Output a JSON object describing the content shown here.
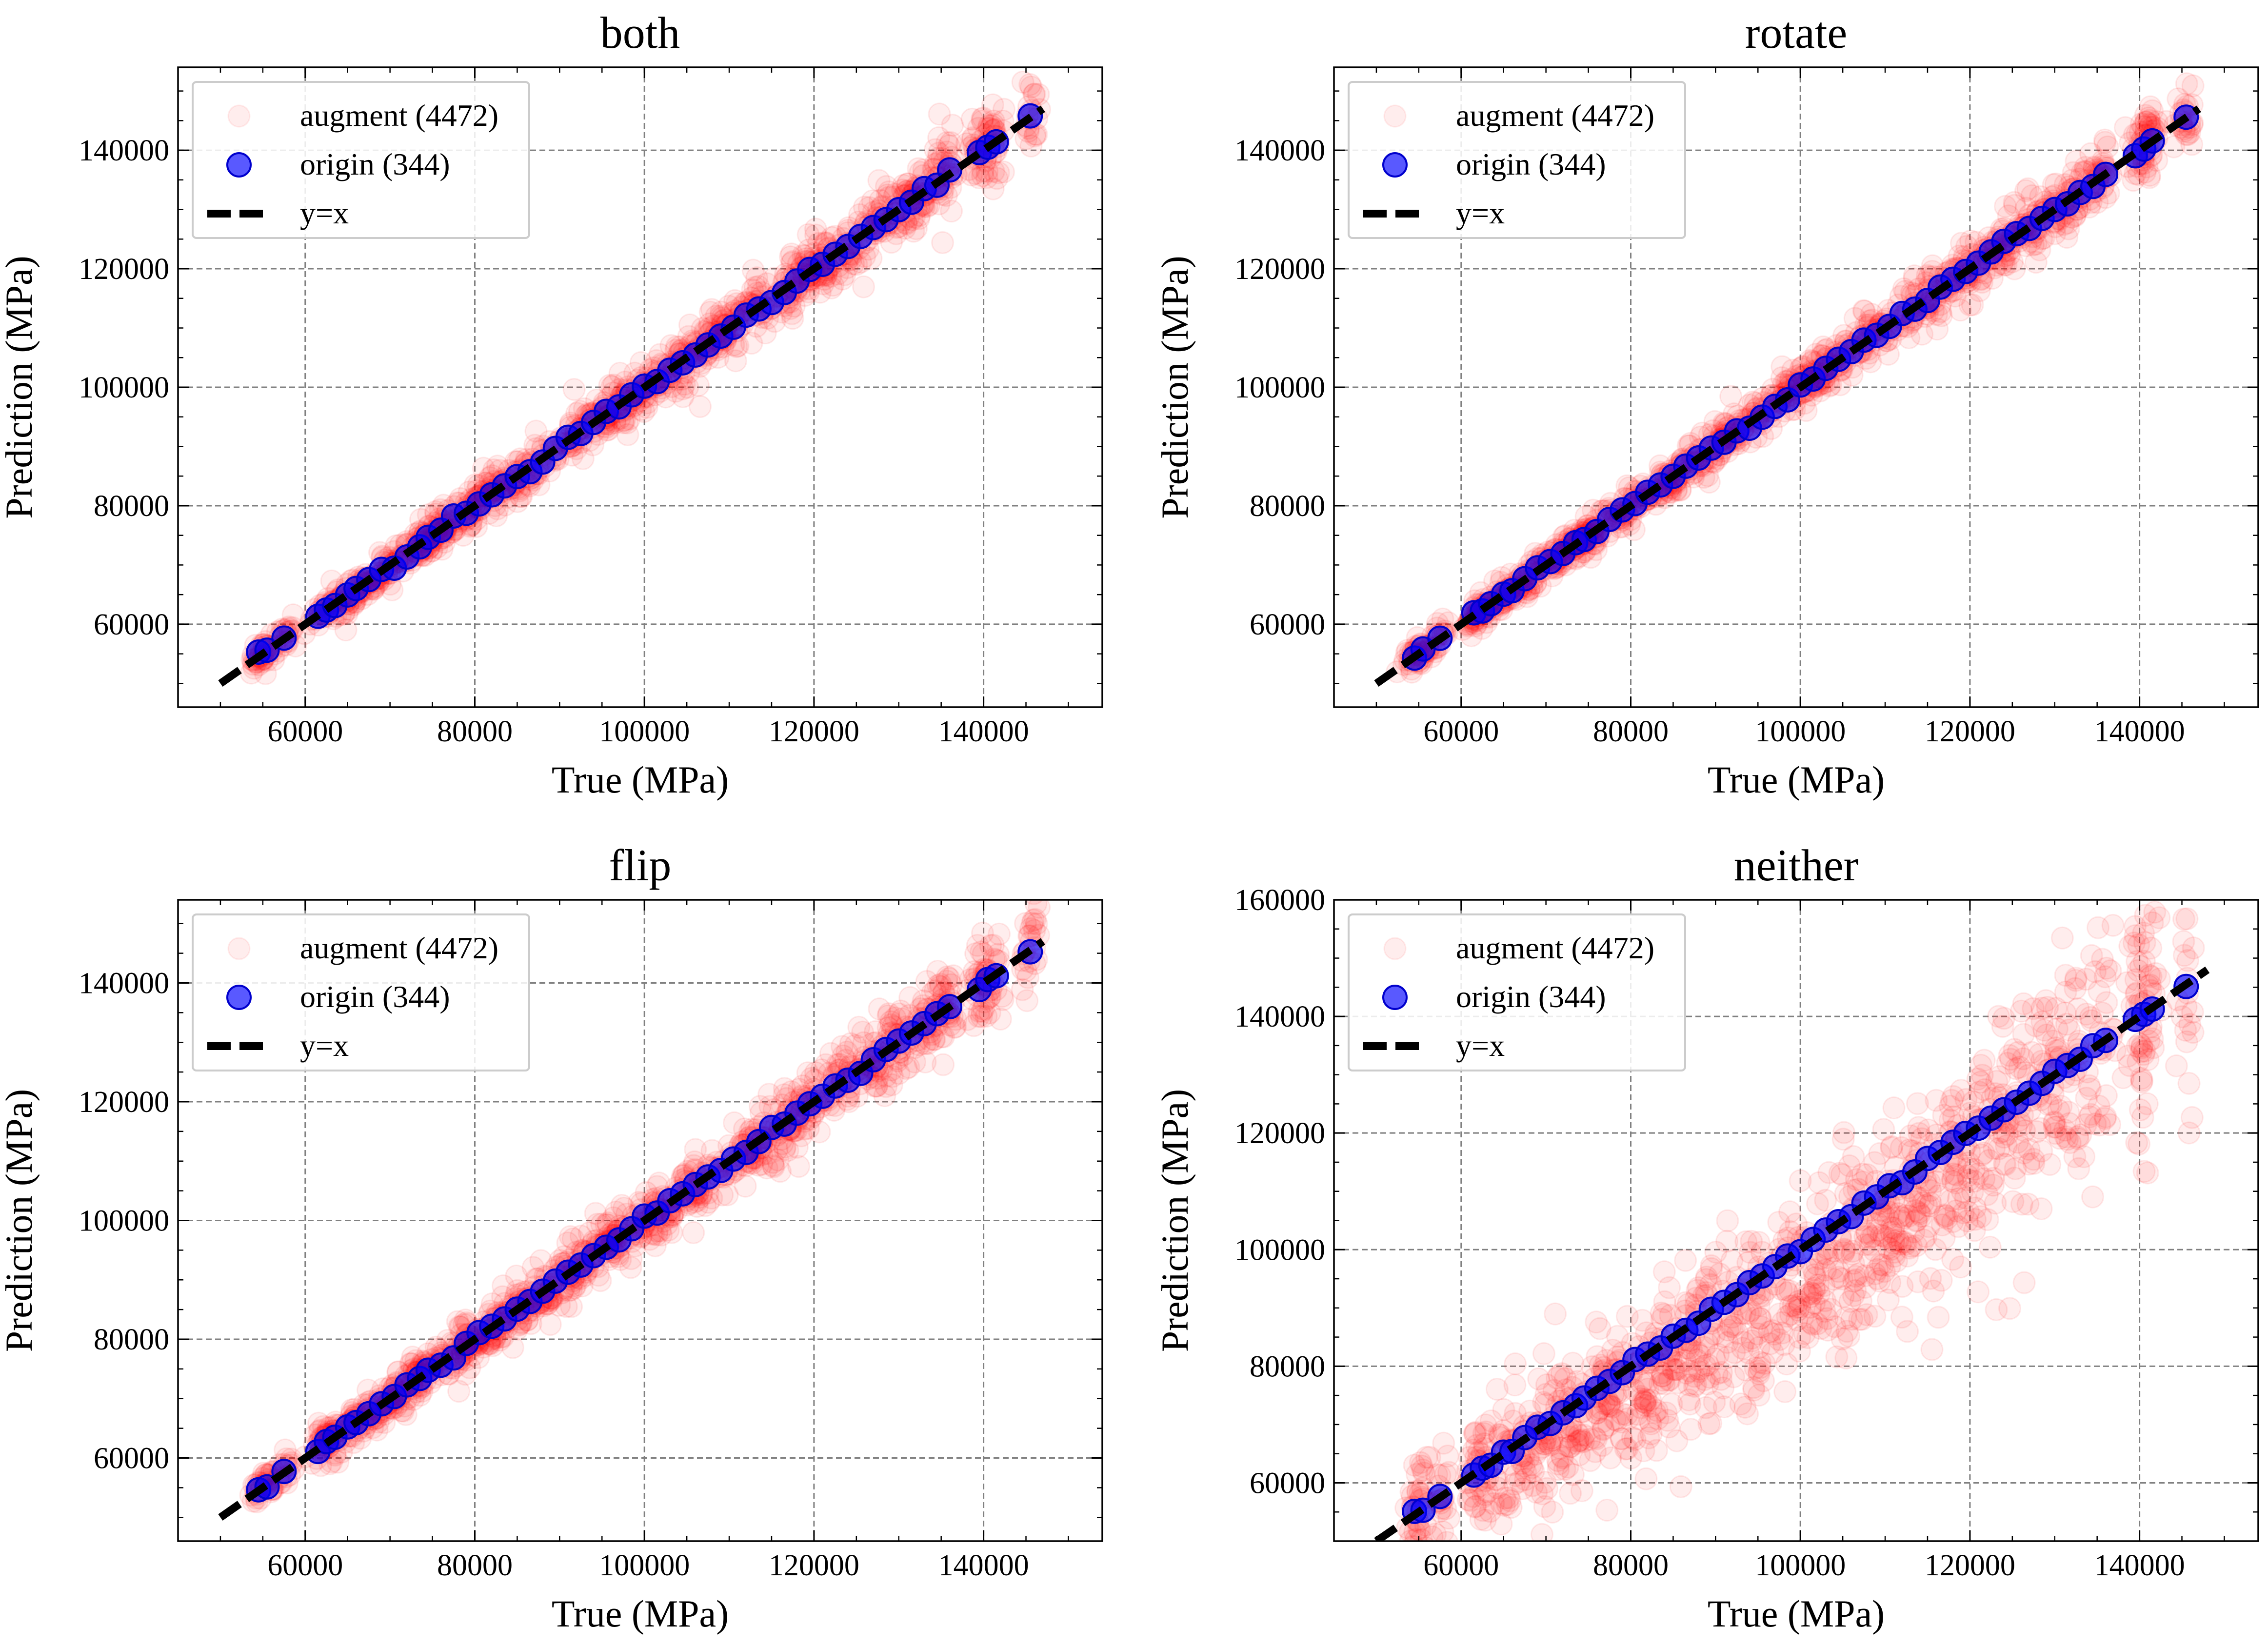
{
  "figure": {
    "colors": {
      "augment": "#ff0000",
      "origin": "#0000ff",
      "identity": "#000000",
      "grid": "#808080"
    }
  },
  "chart_data": [
    {
      "type": "scatter",
      "title": "both",
      "xlabel": "True (MPa)",
      "ylabel": "Prediction (MPa)",
      "xlim": [
        45000,
        154000
      ],
      "ylim": [
        46000,
        154000
      ],
      "xticks": [
        60000,
        80000,
        100000,
        120000,
        140000
      ],
      "yticks": [
        60000,
        80000,
        100000,
        120000,
        140000
      ],
      "grid": true,
      "legend_position": "top-left",
      "series": [
        {
          "name": "augment (4472)",
          "color": "#ff0000",
          "alpha": 0.07,
          "spread": 0.022,
          "bias": 0.0
        },
        {
          "name": "origin (344)",
          "color": "#0000ff",
          "alpha": 0.65
        },
        {
          "name": "y=x",
          "style": "dashed",
          "color": "#000000",
          "x": [
            50000,
            147000
          ],
          "y": [
            50000,
            147000
          ]
        }
      ]
    },
    {
      "type": "scatter",
      "title": "rotate",
      "xlabel": "True (MPa)",
      "ylabel": "Prediction (MPa)",
      "xlim": [
        45000,
        154000
      ],
      "ylim": [
        46000,
        154000
      ],
      "xticks": [
        60000,
        80000,
        100000,
        120000,
        140000
      ],
      "yticks": [
        60000,
        80000,
        100000,
        120000,
        140000
      ],
      "grid": true,
      "legend_position": "top-left",
      "series": [
        {
          "name": "augment (4472)",
          "color": "#ff0000",
          "alpha": 0.07,
          "spread": 0.02,
          "bias": 0.0
        },
        {
          "name": "origin (344)",
          "color": "#0000ff",
          "alpha": 0.65
        },
        {
          "name": "y=x",
          "style": "dashed",
          "color": "#000000",
          "x": [
            50000,
            147000
          ],
          "y": [
            50000,
            147000
          ]
        }
      ]
    },
    {
      "type": "scatter",
      "title": "flip",
      "xlabel": "True (MPa)",
      "ylabel": "Prediction (MPa)",
      "xlim": [
        45000,
        154000
      ],
      "ylim": [
        46000,
        154000
      ],
      "xticks": [
        60000,
        80000,
        100000,
        120000,
        140000
      ],
      "yticks": [
        60000,
        80000,
        100000,
        120000,
        140000
      ],
      "grid": true,
      "legend_position": "top-left",
      "series": [
        {
          "name": "augment (4472)",
          "color": "#ff0000",
          "alpha": 0.07,
          "spread": 0.025,
          "bias": 0.0
        },
        {
          "name": "origin (344)",
          "color": "#0000ff",
          "alpha": 0.65
        },
        {
          "name": "y=x",
          "style": "dashed",
          "color": "#000000",
          "x": [
            50000,
            147000
          ],
          "y": [
            50000,
            147000
          ]
        }
      ]
    },
    {
      "type": "scatter",
      "title": "neither",
      "xlabel": "True (MPa)",
      "ylabel": "Prediction (MPa)",
      "xlim": [
        45000,
        154000
      ],
      "ylim": [
        50000,
        160000
      ],
      "xticks": [
        60000,
        80000,
        100000,
        120000,
        140000
      ],
      "yticks": [
        60000,
        80000,
        100000,
        120000,
        140000,
        160000
      ],
      "grid": true,
      "legend_position": "top-left",
      "series": [
        {
          "name": "augment (4472)",
          "color": "#ff0000",
          "alpha": 0.07,
          "spread": 0.08,
          "bias": -0.06
        },
        {
          "name": "origin (344)",
          "color": "#0000ff",
          "alpha": 0.65
        },
        {
          "name": "y=x",
          "style": "dashed",
          "color": "#000000",
          "x": [
            50000,
            148000
          ],
          "y": [
            50000,
            148000
          ]
        }
      ]
    }
  ],
  "origin_true_values": [
    54500,
    55500,
    57500,
    61500,
    62500,
    63500,
    65000,
    66000,
    67500,
    69000,
    70500,
    72000,
    73500,
    74500,
    76000,
    77500,
    79000,
    80500,
    82000,
    83500,
    85000,
    86500,
    88000,
    89500,
    91000,
    92500,
    94000,
    95500,
    97000,
    98500,
    100000,
    101500,
    103000,
    104500,
    106000,
    107500,
    109000,
    110500,
    112000,
    113500,
    115000,
    116500,
    118000,
    119500,
    121000,
    122500,
    124000,
    125500,
    127000,
    128500,
    130000,
    131500,
    133000,
    134500,
    136000,
    139500,
    140500,
    141500,
    145500
  ]
}
